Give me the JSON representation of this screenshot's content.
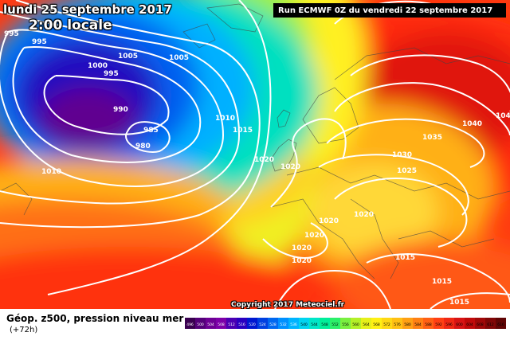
{
  "header": {
    "date": "lundi 25 septembre 2017",
    "time": "2:00 locale",
    "run": "Run ECMWF 0Z du vendredi 22 septembre 2017"
  },
  "copyright": "Copyright 2017 Meteociel.fr",
  "footer": {
    "parameter": "Géop. z500, pression niveau mer",
    "lead": "(+72h)"
  },
  "legend": {
    "values": [
      "496",
      "500",
      "504",
      "508",
      "512",
      "516",
      "520",
      "524",
      "528",
      "532",
      "536",
      "540",
      "544",
      "548",
      "552",
      "556",
      "560",
      "564",
      "568",
      "572",
      "576",
      "580",
      "584",
      "588",
      "592",
      "596",
      "600",
      "604",
      "608",
      "612",
      "616"
    ],
    "colors": [
      "#3a0050",
      "#55007a",
      "#6e0095",
      "#7d00a8",
      "#4b00b3",
      "#2a00c0",
      "#0018d0",
      "#0040e0",
      "#0068f0",
      "#0090ff",
      "#00b4ff",
      "#00d4f0",
      "#00e6c8",
      "#00ee9a",
      "#2cf06a",
      "#7af040",
      "#b4f028",
      "#e6f01a",
      "#fff014",
      "#ffd814",
      "#ffc014",
      "#ffa014",
      "#ff8014",
      "#ff6014",
      "#ff4014",
      "#f02814",
      "#d81414",
      "#c00a0a",
      "#a00808",
      "#800606",
      "#600404"
    ]
  },
  "isobars": [
    {
      "label": "995",
      "key": "i1"
    },
    {
      "label": "995",
      "key": "i2"
    },
    {
      "label": "1005",
      "key": "i3"
    },
    {
      "label": "1005",
      "key": "i4"
    },
    {
      "label": "1000",
      "key": "i5"
    },
    {
      "label": "995",
      "key": "i6"
    },
    {
      "label": "990",
      "key": "i7"
    },
    {
      "label": "985",
      "key": "i8"
    },
    {
      "label": "980",
      "key": "i9"
    },
    {
      "label": "1010",
      "key": "i10"
    },
    {
      "label": "1015",
      "key": "i11"
    },
    {
      "label": "1010",
      "key": "i12"
    },
    {
      "label": "1020",
      "key": "i13"
    },
    {
      "label": "1020",
      "key": "i14"
    },
    {
      "label": "1030",
      "key": "i15"
    },
    {
      "label": "1035",
      "key": "i16"
    },
    {
      "label": "1040",
      "key": "i17"
    },
    {
      "label": "1040",
      "key": "i18"
    },
    {
      "label": "1025",
      "key": "i19"
    },
    {
      "label": "1020",
      "key": "i20"
    },
    {
      "label": "1020",
      "key": "i21"
    },
    {
      "label": "1020",
      "key": "i22"
    },
    {
      "label": "1020",
      "key": "i23"
    },
    {
      "label": "1020",
      "key": "i24"
    },
    {
      "label": "1015",
      "key": "i25"
    },
    {
      "label": "1015",
      "key": "i26"
    },
    {
      "label": "1015",
      "key": "i27"
    }
  ]
}
